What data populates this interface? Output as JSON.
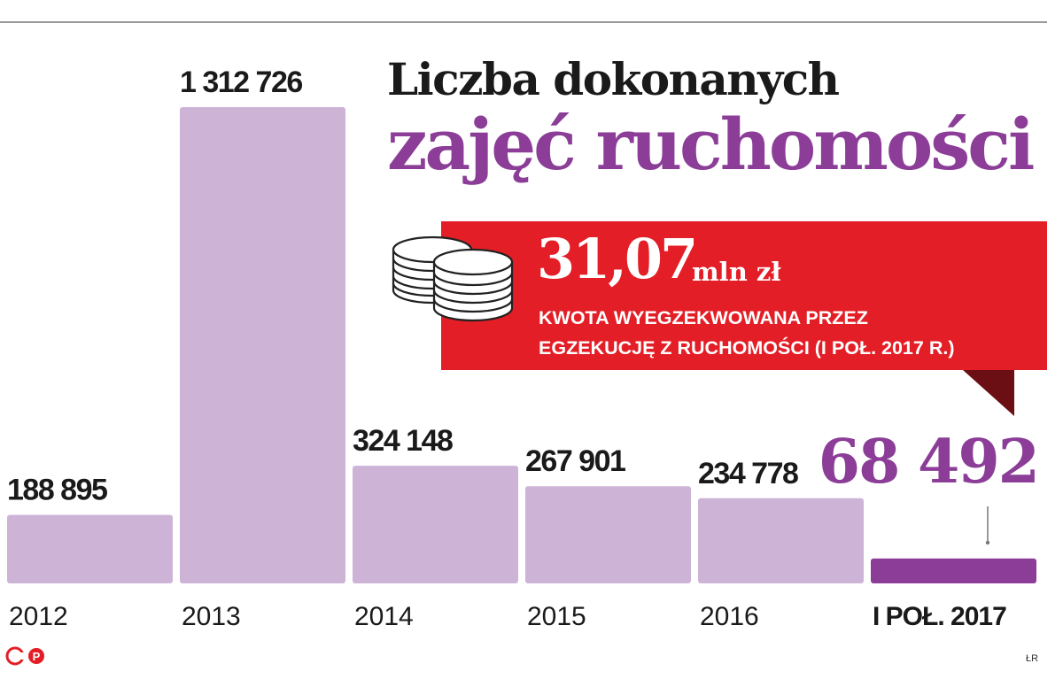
{
  "header": {
    "title_line1": "Liczba dokonanych",
    "title_line2": "zajęć ruchomości"
  },
  "callout": {
    "value": "31,07",
    "unit": "mln zł",
    "desc_line1": "KWOTA WYEGZEKWOWANA PRZEZ",
    "desc_line2": "EGZEKUCJĘ Z RUCHOMOŚCI (I POŁ. 2017 R.)",
    "icon": "coins-icon"
  },
  "chart_data": {
    "type": "bar",
    "title": "Liczba dokonanych zajęć ruchomości",
    "categories": [
      "2012",
      "2013",
      "2014",
      "2015",
      "2016",
      "I POŁ. 2017"
    ],
    "values": [
      188895,
      1312726,
      324148,
      267901,
      234778,
      68492
    ],
    "value_labels": [
      "188 895",
      "1 312 726",
      "324 148",
      "267 901",
      "234 778",
      "68 492"
    ],
    "ylim": [
      0,
      1312726
    ],
    "grid": false,
    "highlight_index": 5
  },
  "colors": {
    "bar": "#cdb4d7",
    "bar_highlight": "#8b3d97",
    "title_accent": "#8b3d97",
    "callout_bg": "#e31e26",
    "callout_tail": "#6b0f14"
  },
  "footer": {
    "logo": "CP",
    "credit": "ŁR"
  }
}
